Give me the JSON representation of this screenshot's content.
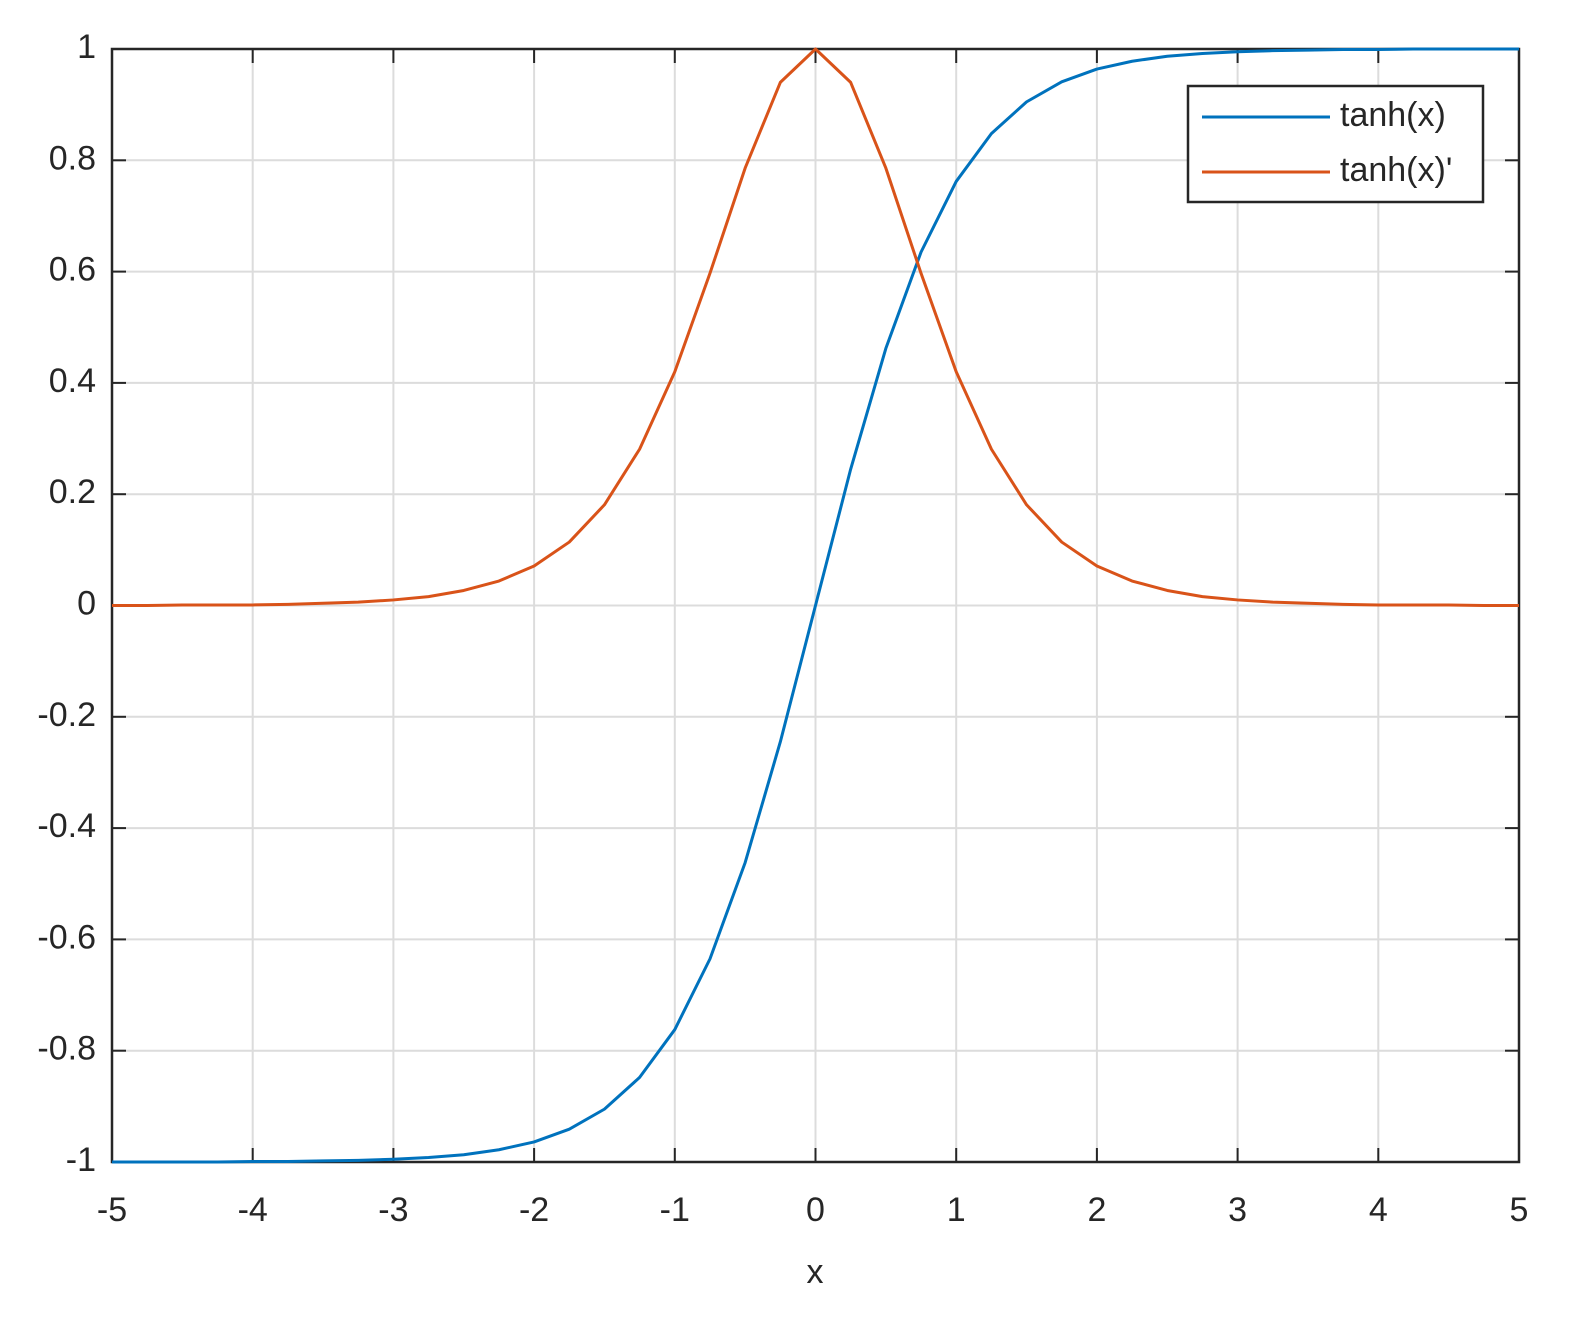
{
  "chart_data": {
    "type": "line",
    "x_label": "x",
    "x": [
      -5,
      -4.75,
      -4.5,
      -4.25,
      -4,
      -3.75,
      -3.5,
      -3.25,
      -3,
      -2.75,
      -2.5,
      -2.25,
      -2,
      -1.75,
      -1.5,
      -1.25,
      -1,
      -0.75,
      -0.5,
      -0.25,
      0,
      0.25,
      0.5,
      0.75,
      1,
      1.25,
      1.5,
      1.75,
      2,
      2.25,
      2.5,
      2.75,
      3,
      3.25,
      3.5,
      3.75,
      4,
      4.25,
      4.5,
      4.75,
      5
    ],
    "series": [
      {
        "name": "tanh(x)",
        "color": "#0072bd",
        "values": [
          -1.0,
          -1.0,
          -1.0,
          -1.0,
          -0.999,
          -0.999,
          -0.998,
          -0.997,
          -0.995,
          -0.992,
          -0.987,
          -0.978,
          -0.964,
          -0.941,
          -0.905,
          -0.848,
          -0.762,
          -0.635,
          -0.462,
          -0.245,
          0,
          0.245,
          0.462,
          0.635,
          0.762,
          0.848,
          0.905,
          0.941,
          0.964,
          0.978,
          0.987,
          0.992,
          0.995,
          0.997,
          0.998,
          0.999,
          0.999,
          1.0,
          1.0,
          1.0,
          1.0
        ]
      },
      {
        "name": "tanh(x)'",
        "color": "#d95319",
        "values": [
          0,
          0,
          0.001,
          0.001,
          0.001,
          0.002,
          0.004,
          0.006,
          0.01,
          0.016,
          0.027,
          0.044,
          0.071,
          0.114,
          0.181,
          0.281,
          0.42,
          0.597,
          0.786,
          0.94,
          1,
          0.94,
          0.786,
          0.597,
          0.42,
          0.281,
          0.181,
          0.114,
          0.071,
          0.044,
          0.027,
          0.016,
          0.01,
          0.006,
          0.004,
          0.002,
          0.001,
          0.001,
          0.001,
          0,
          0
        ]
      }
    ],
    "xlim": [
      -5,
      5
    ],
    "xticks": [
      -5,
      -4,
      -3,
      -2,
      -1,
      0,
      1,
      2,
      3,
      4,
      5
    ],
    "ylim": [
      -1,
      1
    ],
    "yticks": [
      -1,
      -0.8,
      -0.6,
      -0.4,
      -0.2,
      0,
      0.2,
      0.4,
      0.6,
      0.8,
      1
    ],
    "grid": true,
    "legend": "top-right"
  }
}
